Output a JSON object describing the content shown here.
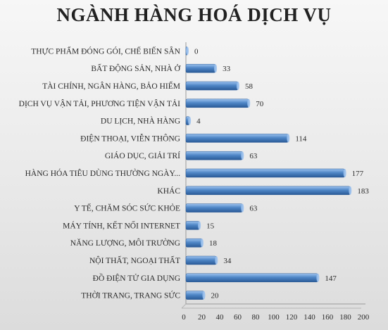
{
  "chart_data": {
    "type": "bar",
    "orientation": "horizontal",
    "title": "NGÀNH HÀNG HOÁ DỊCH VỤ",
    "categories": [
      "THỰC PHẨM ĐÓNG GÓI, CHẾ BIẾN SẴN",
      "BẤT ĐỘNG SẢN, NHÀ Ở",
      "TÀI CHÍNH, NGÂN HÀNG, BẢO HIỂM",
      "DỊCH VỤ VẬN TẢI, PHƯƠNG TIỆN VẬN TẢI",
      "DU LỊCH, NHÀ HÀNG",
      "ĐIỆN THOẠI, VIỄN THÔNG",
      "GIÁO DỤC, GIẢI TRÍ",
      "HÀNG HÓA TIÊU DÙNG THƯỜNG NGÀY...",
      "KHÁC",
      "Y TẾ, CHĂM SÓC SỨC KHỎE",
      "MÁY TÍNH, KẾT NỐI INTERNET",
      "NĂNG LƯỢNG, MÔI TRƯỜNG",
      "NỘI THẤT, NGOẠI THẤT",
      "ĐỒ ĐIỆN TỬ GIA DỤNG",
      "THỜI TRANG, TRANG SỨC"
    ],
    "values": [
      0,
      33,
      58,
      70,
      4,
      114,
      63,
      177,
      183,
      63,
      15,
      18,
      34,
      147,
      20
    ],
    "xlim": [
      0,
      200
    ],
    "xticks": [
      0,
      20,
      40,
      60,
      80,
      100,
      120,
      140,
      160,
      180,
      200
    ],
    "grid": false,
    "data_labels": true,
    "colors": {
      "bar": "#4f86c6",
      "bar_light": "#9cc2ee",
      "bar_dark": "#2a5a97"
    }
  }
}
